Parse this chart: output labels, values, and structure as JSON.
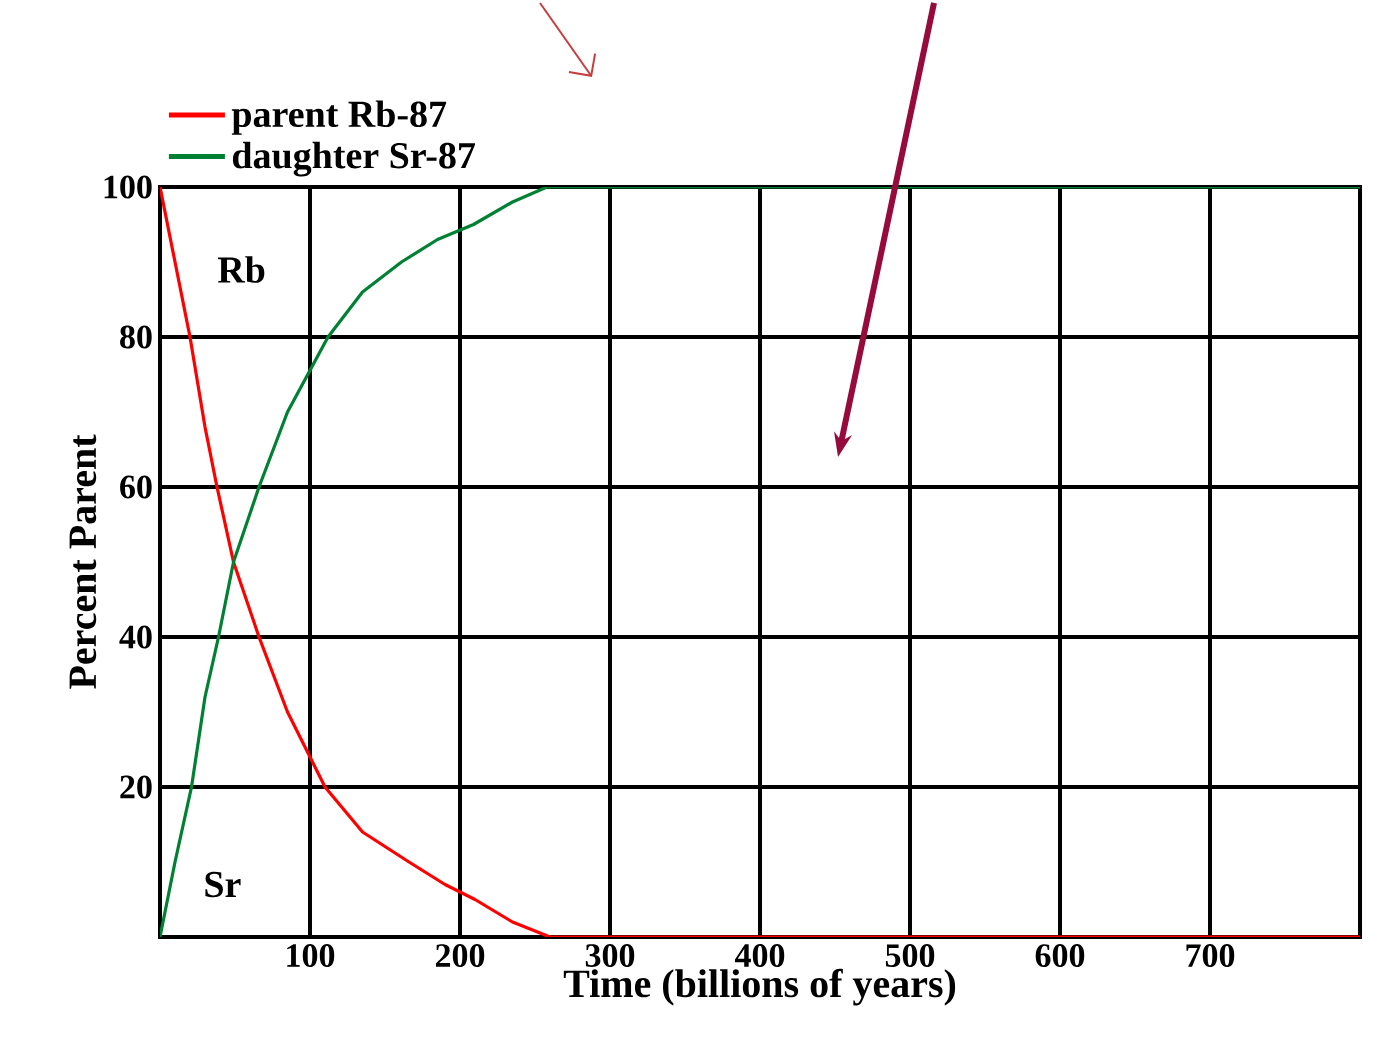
{
  "chart_data": {
    "type": "line",
    "xlabel": "Time (billions of years)",
    "ylabel": "Percent Parent",
    "xlim": [
      0,
      800
    ],
    "ylim": [
      0,
      100
    ],
    "xticks": [
      100,
      200,
      300,
      400,
      500,
      600,
      700
    ],
    "yticks": [
      20,
      40,
      60,
      80,
      100
    ],
    "grid": true,
    "legend": "top left",
    "line_style": "solid",
    "marker": "none",
    "series": [
      {
        "name": "parent Rb-87",
        "color": "#ff0000",
        "x": [
          0,
          10,
          20,
          30,
          38,
          49,
          66,
          85,
          110,
          135,
          166,
          190,
          210,
          235,
          260,
          800
        ],
        "values": [
          100,
          90,
          80,
          68,
          60,
          50,
          40,
          30,
          20,
          14,
          10,
          7,
          5,
          2,
          0,
          0
        ]
      },
      {
        "name": "daughter Sr-87",
        "color": "#008033",
        "x": [
          0,
          10,
          21,
          30,
          39,
          49,
          66,
          85,
          112,
          135,
          161,
          185,
          209,
          235,
          258,
          800
        ],
        "values": [
          0,
          10,
          20,
          32,
          40,
          50,
          60,
          70,
          80,
          86,
          90,
          93,
          95,
          98,
          100,
          100
        ]
      }
    ],
    "annotations": [
      "Rb",
      "Sr"
    ]
  }
}
